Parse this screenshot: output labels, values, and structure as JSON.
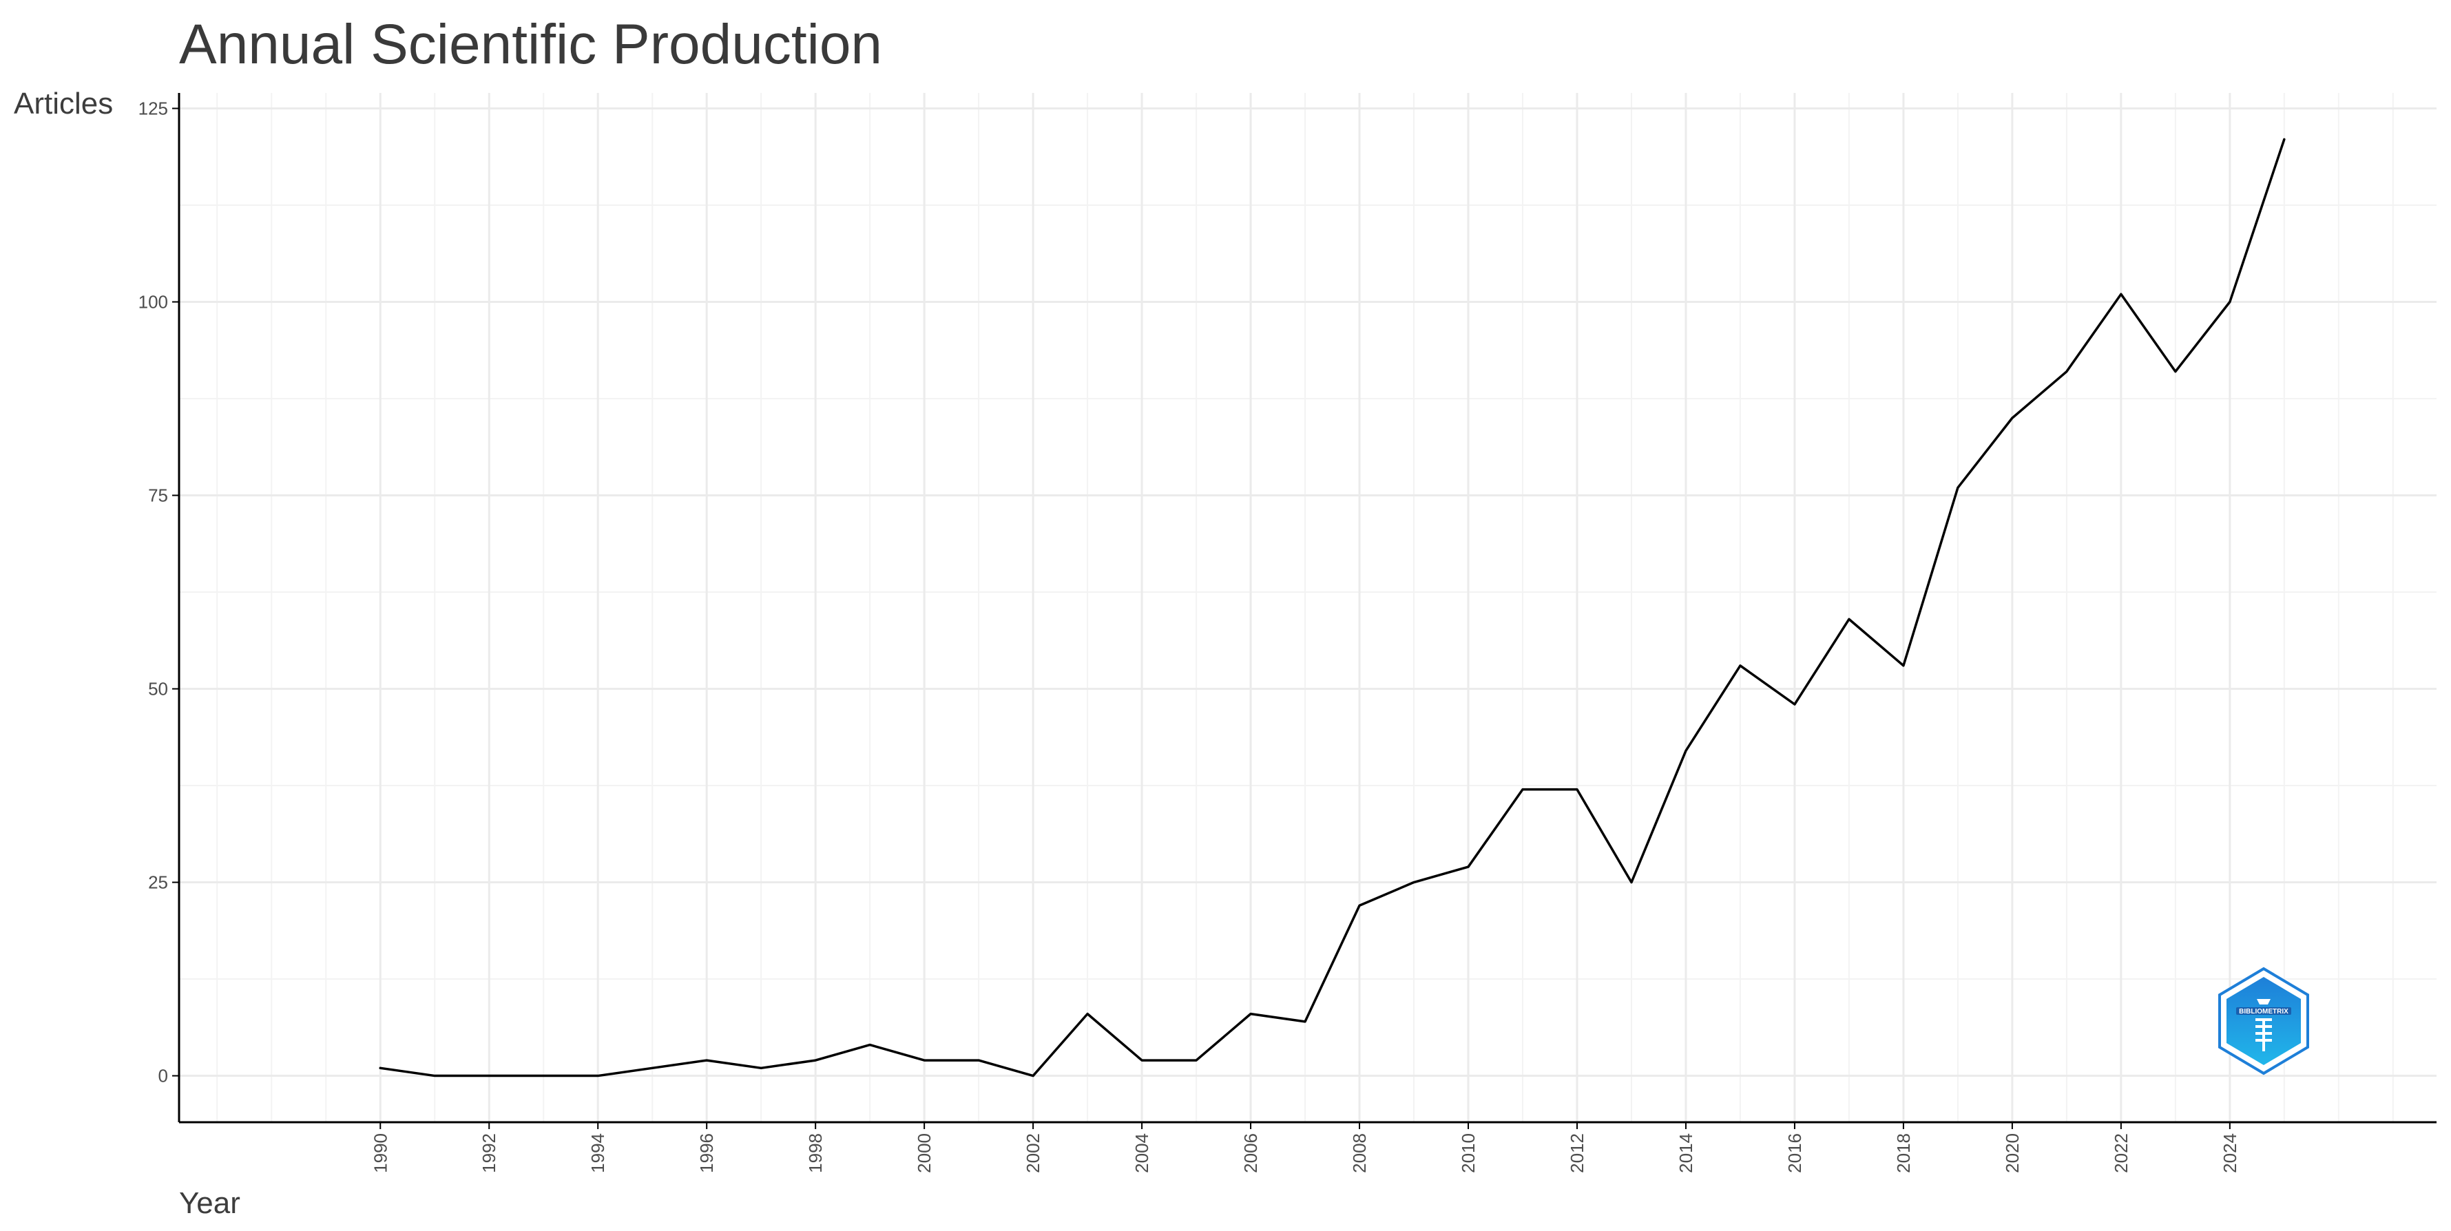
{
  "chart_data": {
    "type": "line",
    "title": "Annual Scientific Production",
    "xlabel": "Year",
    "ylabel": "Articles",
    "x": [
      1990,
      1991,
      1992,
      1993,
      1994,
      1995,
      1996,
      1997,
      1998,
      1999,
      2000,
      2001,
      2002,
      2003,
      2004,
      2005,
      2006,
      2007,
      2008,
      2009,
      2010,
      2011,
      2012,
      2013,
      2014,
      2015,
      2016,
      2017,
      2018,
      2019,
      2020,
      2021,
      2022,
      2023,
      2024,
      2025
    ],
    "series": [
      {
        "values": [
          1,
          0,
          0,
          0,
          0,
          1,
          2,
          1,
          2,
          4,
          2,
          2,
          0,
          8,
          2,
          2,
          8,
          7,
          22,
          25,
          27,
          37,
          37,
          25,
          42,
          53,
          48,
          59,
          53,
          76,
          85,
          91,
          101,
          91,
          100,
          121
        ]
      }
    ],
    "x_ticks": [
      "1990",
      "1992",
      "1994",
      "1996",
      "1998",
      "2000",
      "2002",
      "2004",
      "2006",
      "2008",
      "2010",
      "2012",
      "2014",
      "2016",
      "2018",
      "2020",
      "2022",
      "2024"
    ],
    "y_ticks": [
      "0",
      "25",
      "50",
      "75",
      "100",
      "125"
    ],
    "xlim": [
      1986.3,
      2027.8
    ],
    "ylim": [
      -6,
      127
    ],
    "grid": true,
    "line_color": "#000000",
    "grid_color": "#ebebeb",
    "axis_color": "#000000",
    "badge_colors": [
      "#1e7fd8",
      "#21b6ea"
    ],
    "badge_icon": "bibliometrix-badge-icon",
    "badge_label": "BIBLIOMETRIX"
  }
}
